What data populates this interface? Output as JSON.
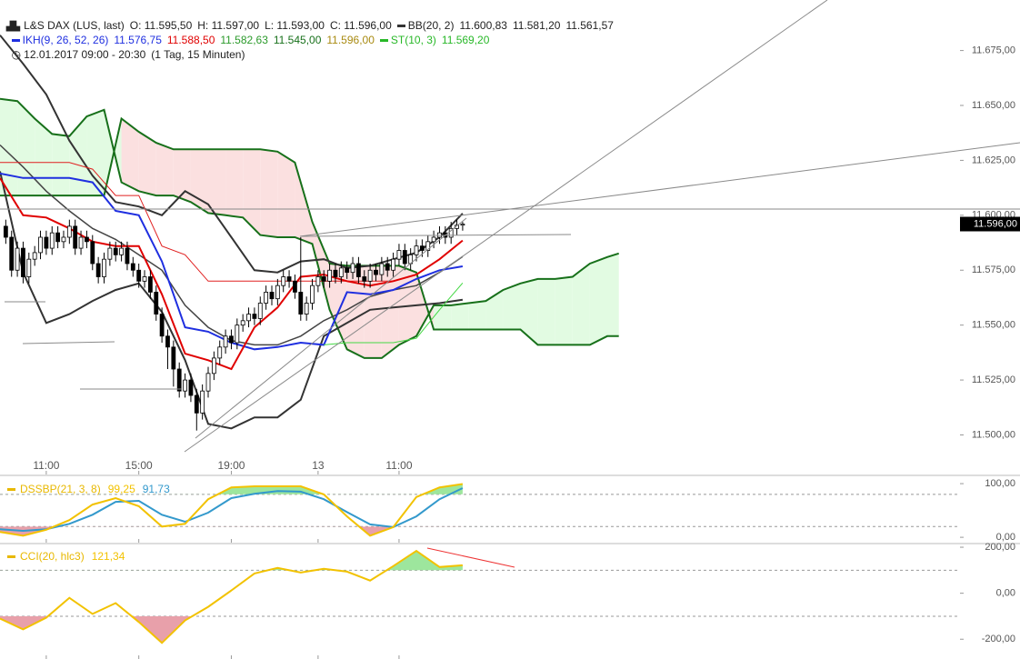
{
  "header": {
    "instrument": "L&S DAX (LUS, last)",
    "ohlc": [
      "O: 11.595,50",
      "H: 11.597,00",
      "L: 11.593,00",
      "C: 11.596,00"
    ],
    "bb": {
      "label": "BB(20, 2)",
      "values": [
        "11.600,83",
        "11.581,20",
        "11.561,57"
      ]
    },
    "ikh": {
      "label": "IKH(9, 26, 52, 26)",
      "values": [
        "11.576,75",
        "11.588,50",
        "11.582,63",
        "11.545,00",
        "11.596,00"
      ]
    },
    "st": {
      "label": "ST(10, 3)",
      "values": [
        "11.569,20"
      ]
    },
    "period": "12.01.2017 09:00 - 20:30",
    "interval": "(1 Tag, 15 Minuten)"
  },
  "chart_data": [
    {
      "type": "candlestick",
      "x": [
        0,
        1,
        2,
        3,
        4,
        5,
        6,
        7,
        8,
        9,
        10,
        11,
        12,
        13,
        14,
        15,
        16,
        17,
        18,
        19,
        20,
        21,
        22,
        23,
        24,
        25,
        26,
        27,
        28,
        29,
        30,
        31,
        32,
        33,
        34,
        35,
        36,
        37,
        38,
        39,
        40,
        41,
        42,
        43,
        44,
        45,
        46,
        47,
        48,
        49,
        50,
        51,
        52,
        53,
        54,
        55,
        56,
        57,
        58,
        59,
        60,
        61,
        62,
        63,
        64,
        65,
        66,
        67,
        68,
        69,
        70,
        71,
        72,
        73,
        74,
        75,
        76,
        77,
        78,
        79
      ],
      "open": [
        11595,
        11590,
        11575,
        11585,
        11572,
        11580,
        11583,
        11590,
        11585,
        11592,
        11588,
        11590,
        11595,
        11585,
        11590,
        11588,
        11578,
        11572,
        11580,
        11585,
        11582,
        11585,
        11578,
        11575,
        11570,
        11572,
        11565,
        11555,
        11545,
        11540,
        11530,
        11520,
        11525,
        11518,
        11510,
        11520,
        11528,
        11535,
        11540,
        11545,
        11542,
        11550,
        11552,
        11555,
        11553,
        11560,
        11565,
        11562,
        11568,
        11572,
        11570,
        11565,
        11555,
        11560,
        11568,
        11572,
        11570,
        11575,
        11572,
        11576,
        11574,
        11578,
        11572,
        11570,
        11575,
        11573,
        11578,
        11575,
        11580,
        11584,
        11578,
        11582,
        11586,
        11584,
        11588,
        11590,
        11592,
        11590,
        11594,
        11595.5
      ],
      "high": [
        11598,
        11593,
        11588,
        11588,
        11583,
        11586,
        11593,
        11593,
        11595,
        11595,
        11593,
        11598,
        11598,
        11593,
        11593,
        11591,
        11581,
        11583,
        11588,
        11588,
        11588,
        11588,
        11581,
        11578,
        11575,
        11575,
        11568,
        11558,
        11548,
        11543,
        11533,
        11528,
        11528,
        11521,
        11523,
        11531,
        11538,
        11543,
        11548,
        11548,
        11553,
        11555,
        11558,
        11558,
        11563,
        11568,
        11568,
        11571,
        11575,
        11575,
        11573,
        11590,
        11563,
        11571,
        11575,
        11575,
        11578,
        11578,
        11579,
        11579,
        11581,
        11581,
        11575,
        11578,
        11578,
        11581,
        11581,
        11583,
        11587,
        11587,
        11585,
        11589,
        11589,
        11591,
        11593,
        11595,
        11595,
        11597,
        11598,
        11597
      ],
      "low": [
        11587,
        11572,
        11572,
        11569,
        11569,
        11577,
        11580,
        11582,
        11582,
        11585,
        11585,
        11587,
        11582,
        11582,
        11585,
        11575,
        11569,
        11569,
        11577,
        11579,
        11579,
        11575,
        11572,
        11567,
        11567,
        11562,
        11552,
        11542,
        11530,
        11522,
        11517,
        11517,
        11515,
        11502,
        11507,
        11517,
        11525,
        11532,
        11537,
        11539,
        11539,
        11547,
        11549,
        11550,
        11550,
        11557,
        11559,
        11559,
        11565,
        11567,
        11562,
        11552,
        11552,
        11557,
        11565,
        11567,
        11567,
        11569,
        11569,
        11571,
        11571,
        11569,
        11567,
        11567,
        11570,
        11570,
        11572,
        11572,
        11577,
        11575,
        11575,
        11579,
        11581,
        11581,
        11585,
        11587,
        11587,
        11587,
        11591,
        11593
      ],
      "close": [
        11590,
        11575,
        11585,
        11572,
        11580,
        11583,
        11590,
        11585,
        11592,
        11588,
        11590,
        11595,
        11585,
        11590,
        11588,
        11578,
        11572,
        11580,
        11585,
        11582,
        11585,
        11578,
        11575,
        11570,
        11572,
        11565,
        11555,
        11545,
        11540,
        11530,
        11520,
        11525,
        11518,
        11510,
        11520,
        11528,
        11535,
        11540,
        11545,
        11542,
        11550,
        11552,
        11555,
        11553,
        11560,
        11565,
        11562,
        11568,
        11572,
        11570,
        11565,
        11555,
        11560,
        11568,
        11572,
        11570,
        11575,
        11572,
        11576,
        11574,
        11578,
        11572,
        11570,
        11575,
        11573,
        11578,
        11575,
        11580,
        11584,
        11578,
        11582,
        11586,
        11584,
        11588,
        11590,
        11592,
        11590,
        11594,
        11595.5,
        11596
      ],
      "up_color": "#ffffff",
      "down_color": "#000000",
      "xlim": [
        -1,
        165
      ],
      "ylim": [
        11482,
        11698
      ],
      "xticks": [
        {
          "value": 7,
          "label": "11:00"
        },
        {
          "value": 23,
          "label": "15:00"
        },
        {
          "value": 39,
          "label": "19:00"
        },
        {
          "value": 54,
          "label": "13"
        },
        {
          "value": 68,
          "label": "11:00"
        }
      ],
      "yticks": [
        {
          "value": 11500,
          "label": "11.500,00"
        },
        {
          "value": 11525,
          "label": "11.525,00"
        },
        {
          "value": 11550,
          "label": "11.550,00"
        },
        {
          "value": 11575,
          "label": "11.575,00"
        },
        {
          "value": 11600,
          "label": "11.600,00"
        },
        {
          "value": 11625,
          "label": "11.625,00"
        },
        {
          "value": 11650,
          "label": "11.650,00"
        },
        {
          "value": 11675,
          "label": "11.675,00"
        }
      ],
      "last_value": {
        "value": 11596,
        "label": "11.596,00"
      },
      "cloud": {
        "x": [
          -1,
          2,
          5,
          8,
          11,
          14,
          17,
          20,
          23,
          26,
          29,
          32,
          35,
          38,
          41,
          44,
          47,
          50,
          53,
          56,
          59,
          62,
          65,
          68,
          71,
          74,
          77,
          80,
          83,
          86,
          89,
          92,
          95,
          98,
          101,
          104,
          106
        ],
        "span_a": [
          11653,
          11652,
          11644,
          11637,
          11636,
          11645,
          11648,
          11615,
          11611,
          11609,
          11609,
          11606,
          11601,
          11600,
          11599,
          11591,
          11590,
          11590,
          11587,
          11557,
          11539,
          11535,
          11535,
          11541,
          11545,
          11559,
          11559,
          11560,
          11561,
          11566,
          11569,
          11571,
          11571,
          11572,
          11578,
          11581,
          11582.63
        ],
        "span_b": [
          11609,
          11609,
          11609,
          11609,
          11609,
          11609,
          11609,
          11644,
          11638,
          11633,
          11630,
          11630,
          11630,
          11630,
          11630,
          11630,
          11629,
          11624,
          11597,
          11578,
          11577,
          11577,
          11577,
          11577,
          11574,
          11548,
          11548,
          11548,
          11548,
          11548,
          11548,
          11541,
          11541,
          11541,
          11541,
          11545,
          11545
        ],
        "line_color": "#17701a",
        "up_color": "#e2fbe2",
        "down_color": "#fbe0e0"
      },
      "lines": [
        {
          "x": [
            -1,
            3,
            7,
            11,
            15,
            19,
            23,
            27,
            31,
            35,
            39,
            43,
            47,
            51,
            55,
            59,
            63,
            67,
            71,
            75,
            79
          ],
          "values": [
            11682,
            11669,
            11655,
            11634,
            11618,
            11606,
            11604,
            11600,
            11611,
            11605,
            11590,
            11575,
            11574,
            11579,
            11580,
            11576,
            11577,
            11580,
            11583,
            11590,
            11600.83
          ],
          "color": "#333333",
          "width": 2
        },
        {
          "x": [
            -1,
            3,
            7,
            11,
            15,
            19,
            23,
            27,
            31,
            35,
            39,
            43,
            47,
            51,
            55,
            59,
            63,
            67,
            71,
            75,
            79
          ],
          "values": [
            11632,
            11622,
            11611,
            11602,
            11594,
            11589,
            11582,
            11575,
            11559,
            11549,
            11543,
            11541,
            11541,
            11545,
            11552,
            11557,
            11563,
            11566,
            11568,
            11574,
            11581.2
          ],
          "color": "#444444",
          "width": 1.5
        },
        {
          "x": [
            -1,
            3,
            7,
            11,
            15,
            19,
            23,
            27,
            31,
            35,
            39,
            43,
            47,
            51,
            55,
            59,
            63,
            67,
            71,
            75,
            79
          ],
          "values": [
            11620,
            11574,
            11551,
            11555,
            11561,
            11566,
            11569,
            11556,
            11534,
            11505,
            11503,
            11508,
            11508,
            11516,
            11545,
            11551,
            11557,
            11558,
            11559,
            11560,
            11561.57
          ],
          "color": "#333333",
          "width": 2
        },
        {
          "x": [
            -1,
            3,
            7,
            11,
            15,
            19,
            23,
            27,
            31,
            35,
            39,
            43,
            47,
            51,
            55,
            59,
            63,
            67
          ],
          "values": [
            11624,
            11624,
            11624,
            11624,
            11621,
            11609,
            11609,
            11586,
            11582,
            11570,
            11570,
            11570,
            11570,
            11570,
            11570,
            11570,
            11570,
            11570
          ],
          "color": "#e02020",
          "width": 1
        },
        {
          "x": [
            -1,
            3,
            7,
            11,
            15,
            19,
            23,
            27,
            31,
            35,
            39,
            43,
            47,
            51,
            55,
            59,
            63,
            67,
            71,
            75,
            79
          ],
          "values": [
            11619,
            11617,
            11617,
            11617,
            11615,
            11602,
            11600,
            11579,
            11549,
            11547,
            11542,
            11539,
            11540,
            11542,
            11541,
            11565,
            11564,
            11566,
            11571,
            11575,
            11576.75
          ],
          "color": "#1f2fe0",
          "width": 2
        },
        {
          "x": [
            -1,
            3,
            7,
            11,
            15,
            19,
            23,
            27,
            31,
            35,
            39,
            43,
            47,
            51,
            55,
            59,
            63,
            67,
            71,
            75,
            79
          ],
          "values": [
            11617,
            11600,
            11599,
            11594,
            11588,
            11586,
            11586,
            11564,
            11537,
            11534,
            11530,
            11549,
            11558,
            11572,
            11573,
            11570,
            11568,
            11570,
            11573,
            11580,
            11588.5
          ],
          "color": "#e00000",
          "width": 2
        },
        {
          "x": [
            55,
            59,
            63,
            67,
            71,
            75,
            79
          ],
          "values": [
            11541,
            11542,
            11542,
            11542,
            11544,
            11557,
            11569.2
          ],
          "color": "#44d844",
          "width": 1
        }
      ]
    },
    {
      "type": "line",
      "title": "DSSBP(21, 3, 8)",
      "title_color": "#e8b800",
      "x": [
        -1,
        3,
        7,
        11,
        15,
        19,
        23,
        27,
        31,
        35,
        39,
        43,
        47,
        51,
        55,
        59,
        63,
        67,
        71,
        75,
        79
      ],
      "series": [
        {
          "values": [
            10,
            3,
            14,
            32,
            61,
            73,
            58,
            20,
            25,
            71,
            93,
            95,
            95,
            95,
            80,
            39,
            3,
            19,
            75,
            93,
            99.25
          ],
          "color": "#f2c200",
          "label": "99,25"
        },
        {
          "values": [
            15,
            12,
            15,
            25,
            42,
            66,
            68,
            42,
            29,
            46,
            73,
            81,
            86,
            85,
            71,
            47,
            24,
            19,
            39,
            71,
            91.73
          ],
          "color": "#3399cc",
          "label": "91,73"
        }
      ],
      "xlim": [
        -1,
        165
      ],
      "ylim": [
        -10,
        112
      ],
      "yticks": [
        {
          "value": 0,
          "label": "0,00"
        },
        {
          "value": 100,
          "label": "100,00"
        }
      ],
      "levels": [
        20,
        80
      ],
      "fill_above_color": "#9de69d",
      "fill_below_color": "#e8a0aa"
    },
    {
      "type": "line",
      "title": "CCI(20, hlc3)",
      "title_color": "#e8b800",
      "x": [
        -1,
        3,
        7,
        11,
        15,
        19,
        23,
        27,
        31,
        35,
        39,
        43,
        47,
        51,
        55,
        59,
        63,
        67,
        71,
        75,
        79
      ],
      "series": [
        {
          "values": [
            -110,
            -157,
            -106,
            -20,
            -90,
            -43,
            -125,
            -216,
            -118,
            -59,
            12,
            86,
            110,
            90,
            106,
            94,
            55,
            118,
            184,
            114,
            121.34
          ],
          "color": "#f2c200",
          "label": "121,34"
        }
      ],
      "xlim": [
        -1,
        165
      ],
      "ylim": [
        -286,
        212
      ],
      "yticks": [
        {
          "value": -200,
          "label": "-200,00"
        },
        {
          "value": 0,
          "label": "0,00"
        },
        {
          "value": 200,
          "label": "200,00"
        }
      ],
      "levels": [
        -100,
        100
      ],
      "fill_above_color": "#9de69d",
      "fill_below_color": "#e8a0aa"
    }
  ]
}
